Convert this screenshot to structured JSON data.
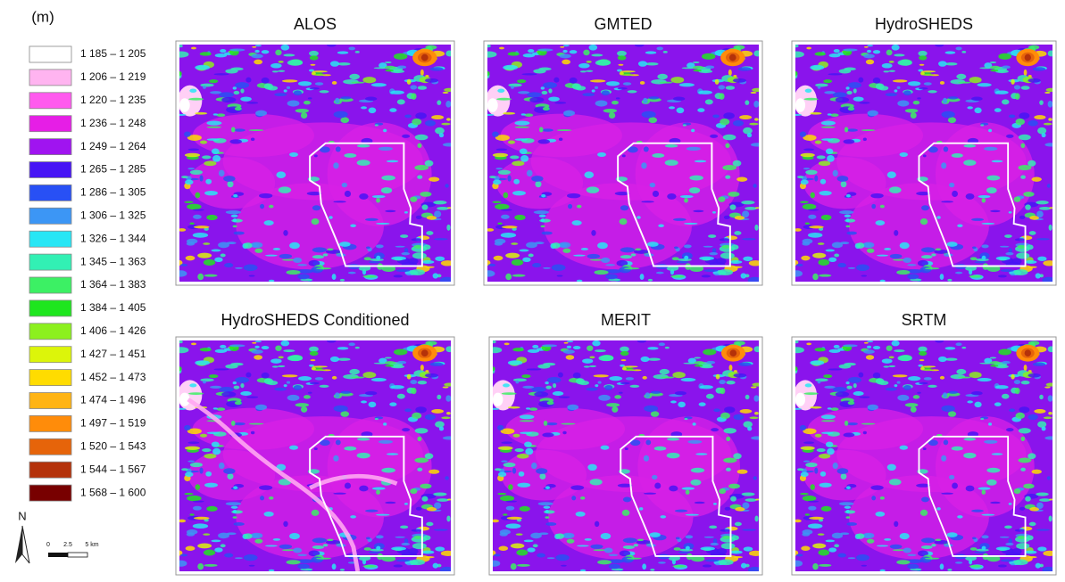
{
  "legend": {
    "title": "(m)",
    "items": [
      {
        "label": "1 185 – 1 205",
        "color": "#ffffff"
      },
      {
        "label": "1 206 – 1 219",
        "color": "#ffb4f0"
      },
      {
        "label": "1 220 – 1 235",
        "color": "#ff5aee"
      },
      {
        "label": "1 236 – 1 248",
        "color": "#e61ee6"
      },
      {
        "label": "1 249 – 1 264",
        "color": "#a014f0"
      },
      {
        "label": "1 265 – 1 285",
        "color": "#4614f5"
      },
      {
        "label": "1 286 – 1 305",
        "color": "#2850f5"
      },
      {
        "label": "1 306 – 1 325",
        "color": "#3c96f5"
      },
      {
        "label": "1 326 – 1 344",
        "color": "#28e6f5"
      },
      {
        "label": "1 345 – 1 363",
        "color": "#32f0b4"
      },
      {
        "label": "1 364 – 1 383",
        "color": "#3cf064"
      },
      {
        "label": "1 384 – 1 405",
        "color": "#1ee61e"
      },
      {
        "label": "1 406 – 1 426",
        "color": "#8cf01e"
      },
      {
        "label": "1 427 – 1 451",
        "color": "#dcf50a"
      },
      {
        "label": "1 452 – 1 473",
        "color": "#ffdc00"
      },
      {
        "label": "1 474 – 1 496",
        "color": "#ffb414"
      },
      {
        "label": "1 497 – 1 519",
        "color": "#ff8c0a"
      },
      {
        "label": "1 520 – 1 543",
        "color": "#e6640a"
      },
      {
        "label": "1 544 – 1 567",
        "color": "#b4320a"
      },
      {
        "label": "1 568 – 1 600",
        "color": "#780000"
      }
    ]
  },
  "north": "N",
  "scale_bar": [
    "0",
    "2.5",
    "5 km"
  ],
  "panels": [
    {
      "title": "ALOS"
    },
    {
      "title": "GMTED"
    },
    {
      "title": "HydroSHEDS"
    },
    {
      "title": "HydroSHEDS Conditioned"
    },
    {
      "title": "MERIT"
    },
    {
      "title": "SRTM"
    }
  ]
}
